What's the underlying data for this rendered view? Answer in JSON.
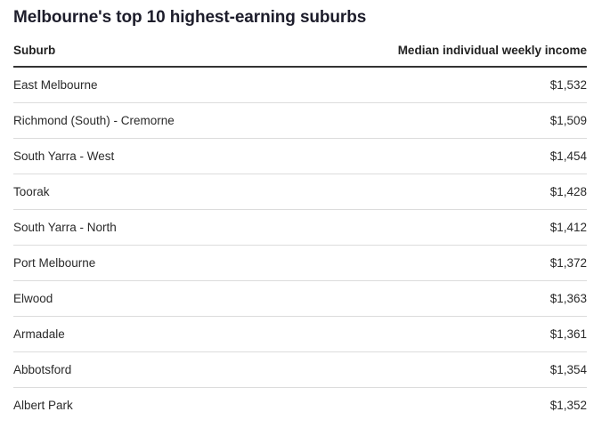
{
  "title": "Melbourne's top 10 highest-earning suburbs",
  "table": {
    "headers": {
      "suburb": "Suburb",
      "income": "Median individual weekly income"
    },
    "rows": [
      {
        "suburb": "East Melbourne",
        "income": "$1,532"
      },
      {
        "suburb": "Richmond (South) - Cremorne",
        "income": "$1,509"
      },
      {
        "suburb": "South Yarra - West",
        "income": "$1,454"
      },
      {
        "suburb": "Toorak",
        "income": "$1,428"
      },
      {
        "suburb": "South Yarra - North",
        "income": "$1,412"
      },
      {
        "suburb": "Port Melbourne",
        "income": "$1,372"
      },
      {
        "suburb": "Elwood",
        "income": "$1,363"
      },
      {
        "suburb": "Armadale",
        "income": "$1,361"
      },
      {
        "suburb": "Abbotsford",
        "income": "$1,354"
      },
      {
        "suburb": "Albert Park",
        "income": "$1,352"
      }
    ]
  },
  "chart_data": {
    "type": "table",
    "title": "Melbourne's top 10 highest-earning suburbs",
    "columns": [
      "Suburb",
      "Median individual weekly income"
    ],
    "categories": [
      "East Melbourne",
      "Richmond (South) - Cremorne",
      "South Yarra - West",
      "Toorak",
      "South Yarra - North",
      "Port Melbourne",
      "Elwood",
      "Armadale",
      "Abbotsford",
      "Albert Park"
    ],
    "values": [
      1532,
      1509,
      1454,
      1428,
      1412,
      1372,
      1363,
      1361,
      1354,
      1352
    ]
  },
  "colors": {
    "title": "#1d1d2b",
    "header_rule": "#333333",
    "row_rule": "#dcdcdc"
  }
}
